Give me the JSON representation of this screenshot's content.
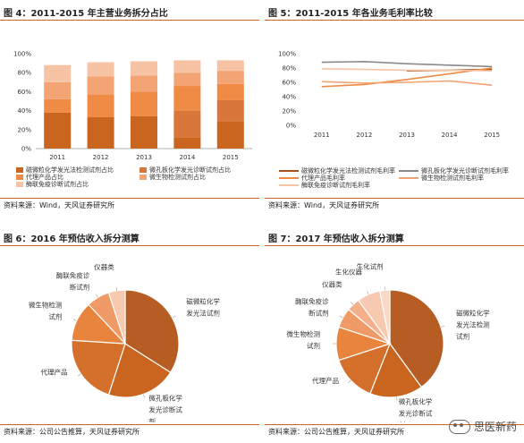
{
  "fig4": {
    "title": "图 4：2011-2015 年主营业务拆分占比",
    "source": "资料来源：Wind，天风证券研究所"
  },
  "fig5": {
    "title": "图 5：2011-2015 年各业务毛利率比较",
    "source": "资料来源：Wind，天风证券研究所"
  },
  "fig6": {
    "title": "图 6：2016 年预估收入拆分测算",
    "source": "资料来源：公司公告推算，天风证券研究所"
  },
  "fig7": {
    "title": "图 7：2017 年预估收入拆分测算",
    "source": "资料来源：公司公告推算，天风证券研究所"
  },
  "watermark": "思医新药",
  "chart_data": [
    {
      "type": "bar",
      "stacked": true,
      "categories": [
        "2011",
        "2012",
        "2013",
        "2014",
        "2015"
      ],
      "ylim": [
        0,
        100
      ],
      "yticks": [
        "0%",
        "20%",
        "40%",
        "60%",
        "80%",
        "100%"
      ],
      "series": [
        {
          "name": "磁微粒化学发光法检测试剂占比",
          "color": "#c9651f",
          "values": [
            38,
            33,
            34,
            12,
            29
          ]
        },
        {
          "name": "微孔板化学发光诊断试剂占比",
          "color": "#d9773a",
          "values": [
            0,
            0,
            0,
            28,
            22
          ]
        },
        {
          "name": "代理产品占比",
          "color": "#ef8b45",
          "values": [
            14,
            24,
            26,
            26,
            17
          ]
        },
        {
          "name": "微生物检测试剂占比",
          "color": "#f2a475",
          "values": [
            18,
            19,
            17,
            14,
            14
          ]
        },
        {
          "name": "酶联免疫诊断试剂占比",
          "color": "#f7c3a5",
          "values": [
            18,
            15,
            15,
            13,
            11
          ]
        }
      ],
      "legend": "bottom"
    },
    {
      "type": "line",
      "x": [
        "2011",
        "2012",
        "2013",
        "2014",
        "2015"
      ],
      "ylim": [
        0,
        100
      ],
      "yticks": [
        "0%",
        "20%",
        "40%",
        "60%",
        "80%",
        "100%"
      ],
      "series": [
        {
          "name": "磁微粒化学发光法检测试剂毛利率",
          "color": "#a8521b",
          "values": [
            null,
            null,
            76,
            77,
            78
          ]
        },
        {
          "name": "微孔板化学发光诊断试剂毛利率",
          "color": "#8a8a8a",
          "values": [
            88,
            89,
            86,
            84,
            82
          ]
        },
        {
          "name": "代理产品毛利率",
          "color": "#ef8b45",
          "values": [
            54,
            57,
            64,
            72,
            80
          ]
        },
        {
          "name": "微生物检测试剂毛利率",
          "color": "#f2a475",
          "values": [
            61,
            59,
            60,
            62,
            56
          ]
        },
        {
          "name": "酶联免疫诊断试剂毛利率",
          "color": "#f7c3a5",
          "values": [
            79,
            78,
            77,
            77,
            76
          ]
        }
      ],
      "legend": "bottom"
    },
    {
      "type": "pie",
      "slices": [
        {
          "label": "磁微粒化学发光法试剂",
          "value": 34,
          "color": "#b55d22"
        },
        {
          "label": "微孔板化学发光诊断试剂",
          "value": 21,
          "color": "#c9651f"
        },
        {
          "label": "代理产品",
          "value": 21,
          "color": "#d4702b"
        },
        {
          "label": "微生物检测试剂",
          "value": 12,
          "color": "#e8843e"
        },
        {
          "label": "酶联免疫诊断试剂",
          "value": 7,
          "color": "#f09a68"
        },
        {
          "label": "仪器类",
          "value": 5,
          "color": "#f7c9b0"
        }
      ]
    },
    {
      "type": "pie",
      "slices": [
        {
          "label": "磁微粒化学发光法检测试剂",
          "value": 40,
          "color": "#b55d22"
        },
        {
          "label": "微孔板化学发光诊断试剂",
          "value": 16,
          "color": "#c9651f"
        },
        {
          "label": "代理产品",
          "value": 14,
          "color": "#d4702b"
        },
        {
          "label": "微生物检测试剂",
          "value": 10,
          "color": "#e8843e"
        },
        {
          "label": "酶联免疫诊断试剂",
          "value": 6,
          "color": "#f09a68"
        },
        {
          "label": "仪器类",
          "value": 4,
          "color": "#f3b08a"
        },
        {
          "label": "生化仪器",
          "value": 7,
          "color": "#f7c9b0"
        },
        {
          "label": "生化试剂",
          "value": 3,
          "color": "#f9d9c6"
        }
      ]
    }
  ]
}
